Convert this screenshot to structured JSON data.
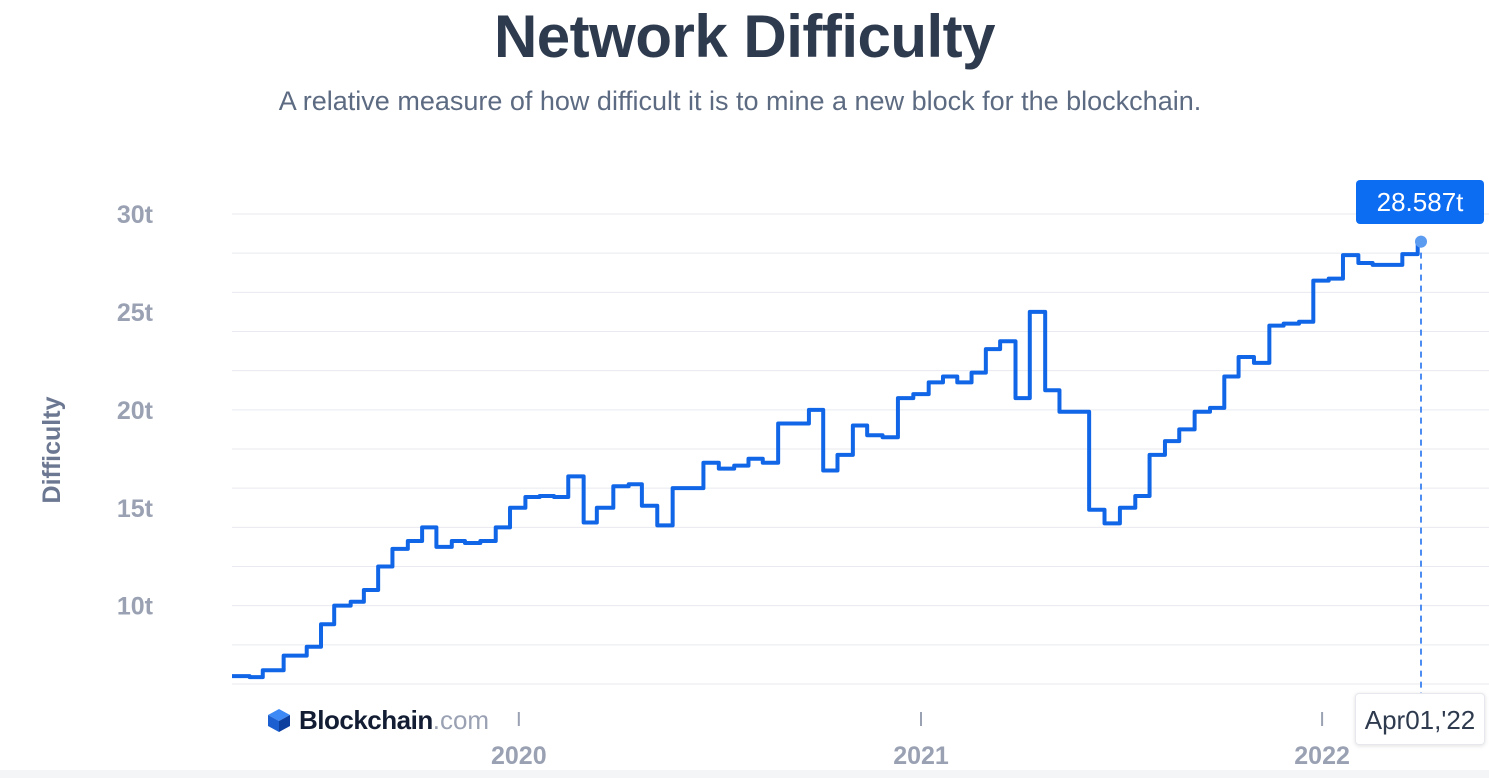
{
  "header": {
    "title": "Network Difficulty",
    "subtitle": "A relative measure of how difficult it is to mine a new block for the blockchain."
  },
  "brand": {
    "name": "Blockchain",
    "tld": ".com"
  },
  "tooltip": {
    "value_label": "28.587t",
    "date_label": "Apr01,'22"
  },
  "colors": {
    "line": "#1166e8",
    "marker": "#5b9bf0",
    "tooltip": "#0c6cf2"
  },
  "chart_data": {
    "type": "line",
    "title": "Network Difficulty",
    "ylabel": "Difficulty",
    "xlabel": "",
    "ylim": [
      6,
      30
    ],
    "xlim": [
      "2019-04-15",
      "2022-04-01"
    ],
    "yticks": [
      10,
      15,
      20,
      25,
      30
    ],
    "ytick_labels": [
      "10t",
      "15t",
      "20t",
      "25t",
      "30t"
    ],
    "xticks": [
      "2020-01-01",
      "2021-01-01",
      "2022-01-01"
    ],
    "xtick_labels": [
      "2020",
      "2021",
      "2022"
    ],
    "grid": true,
    "step": true,
    "series": [
      {
        "x": [
          "2019-04-15",
          "2019-05-01",
          "2019-05-13",
          "2019-06-01",
          "2019-06-22",
          "2019-07-05",
          "2019-07-17",
          "2019-08-01",
          "2019-08-13",
          "2019-08-26",
          "2019-09-08",
          "2019-09-22",
          "2019-10-05",
          "2019-10-18",
          "2019-11-01",
          "2019-11-13",
          "2019-11-27",
          "2019-12-11",
          "2019-12-24",
          "2020-01-07",
          "2020-01-20",
          "2020-02-02",
          "2020-02-15",
          "2020-02-29",
          "2020-03-12",
          "2020-03-27",
          "2020-04-10",
          "2020-04-22",
          "2020-05-06",
          "2020-05-20",
          "2020-06-03",
          "2020-06-17",
          "2020-07-01",
          "2020-07-15",
          "2020-07-28",
          "2020-08-10",
          "2020-08-24",
          "2020-09-07",
          "2020-09-21",
          "2020-10-04",
          "2020-10-17",
          "2020-10-31",
          "2020-11-13",
          "2020-11-27",
          "2020-12-11",
          "2020-12-25",
          "2021-01-08",
          "2021-01-21",
          "2021-02-03",
          "2021-02-16",
          "2021-03-01",
          "2021-03-14",
          "2021-03-28",
          "2021-04-10",
          "2021-04-24",
          "2021-05-07",
          "2021-05-21",
          "2021-06-03",
          "2021-06-17",
          "2021-07-01",
          "2021-07-15",
          "2021-07-28",
          "2021-08-11",
          "2021-08-24",
          "2021-09-07",
          "2021-09-21",
          "2021-10-04",
          "2021-10-17",
          "2021-10-31",
          "2021-11-14",
          "2021-11-27",
          "2021-12-11",
          "2021-12-24",
          "2022-01-07",
          "2022-01-20",
          "2022-02-03",
          "2022-02-16",
          "2022-03-01",
          "2022-03-15",
          "2022-03-29",
          "2022-04-01"
        ],
        "y": [
          6.4,
          6.35,
          6.7,
          7.45,
          7.9,
          9.05,
          10.0,
          10.2,
          10.8,
          12.0,
          12.9,
          13.3,
          14.0,
          13.0,
          13.3,
          13.2,
          13.3,
          14.0,
          15.0,
          15.55,
          15.6,
          15.55,
          16.6,
          14.25,
          15.0,
          16.1,
          16.2,
          15.1,
          14.1,
          16.0,
          16.0,
          17.3,
          17.0,
          17.15,
          17.5,
          17.3,
          19.3,
          19.3,
          20.0,
          16.9,
          17.7,
          19.2,
          18.7,
          18.6,
          20.6,
          20.8,
          21.4,
          21.7,
          21.4,
          21.9,
          23.1,
          23.5,
          20.6,
          25.0,
          21.0,
          19.9,
          19.9,
          14.9,
          14.2,
          15.0,
          15.6,
          17.7,
          18.4,
          19.0,
          19.9,
          20.1,
          21.7,
          22.7,
          22.4,
          24.3,
          24.4,
          24.5,
          26.6,
          26.7,
          27.9,
          27.5,
          27.4,
          27.4,
          27.95,
          28.587,
          28.587
        ]
      }
    ],
    "last_point": {
      "x": "2022-04-01",
      "y": 28.587
    }
  }
}
